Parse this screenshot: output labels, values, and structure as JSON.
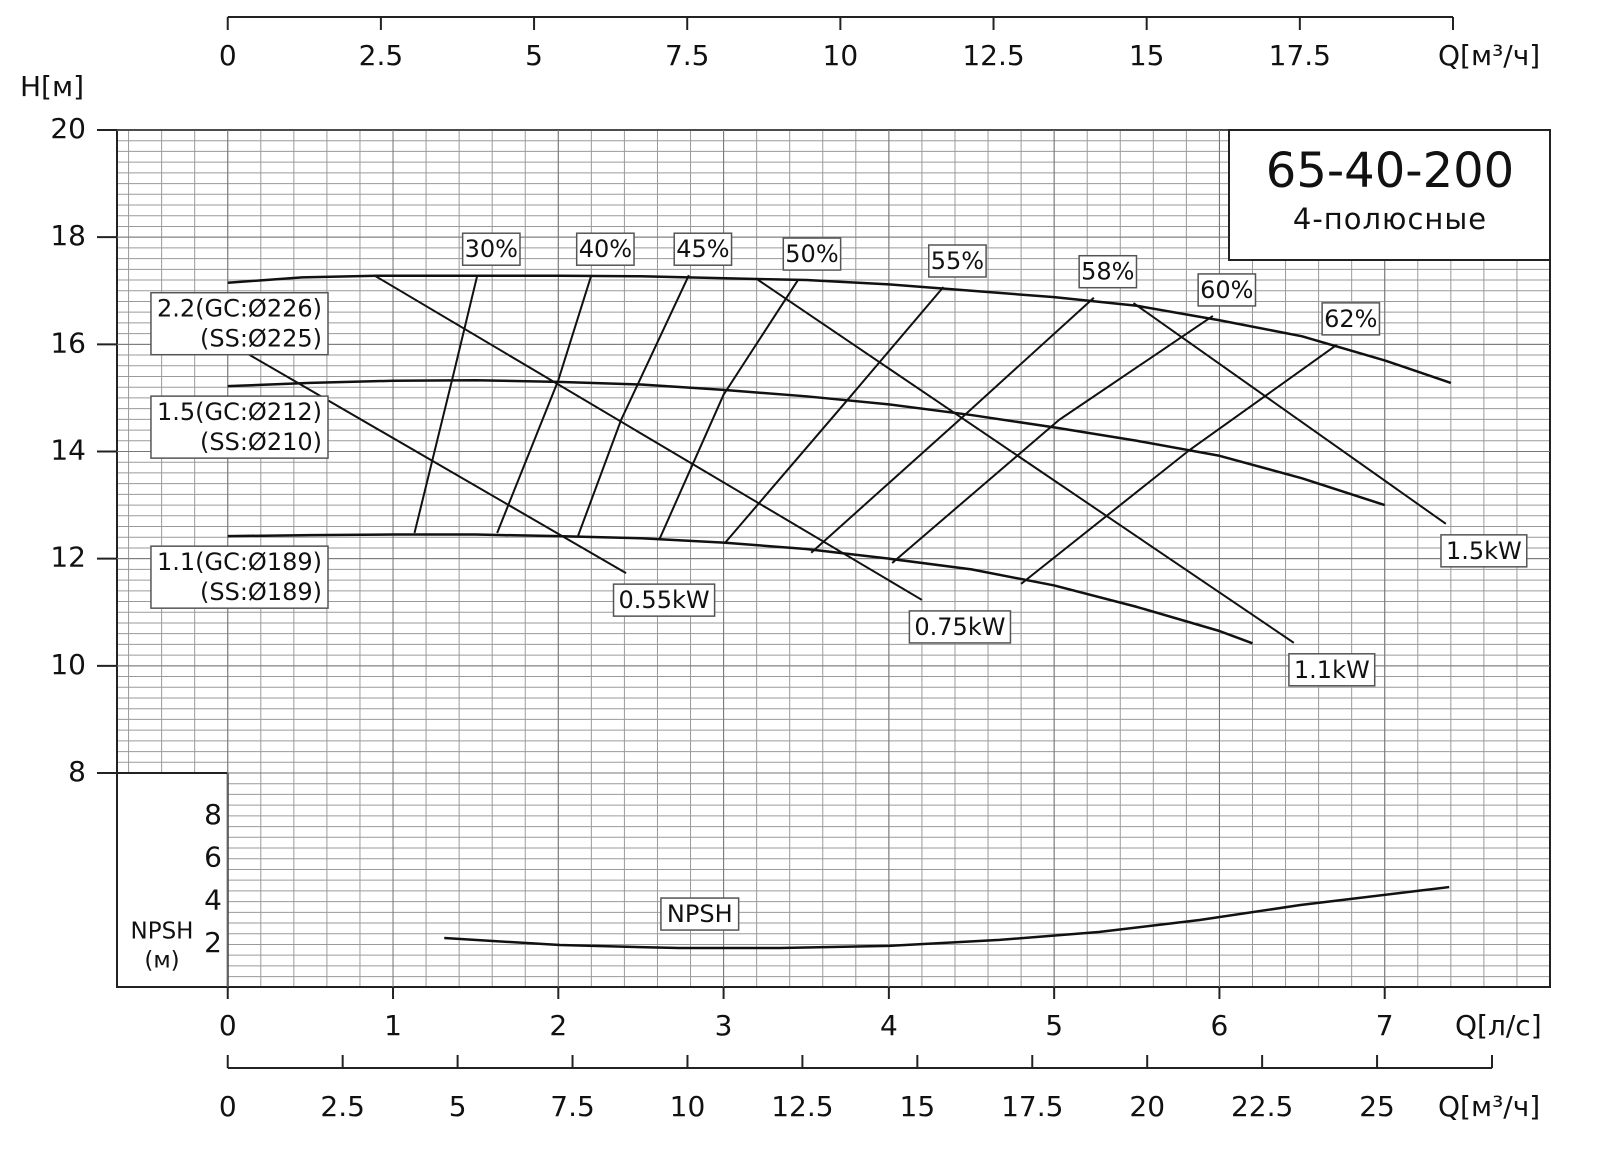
{
  "chart_data": {
    "type": "line",
    "title": "65-40-200",
    "subtitle": "4-полюсные",
    "y_label": "H[м]",
    "x_label": "Q[л/с]",
    "xlim": [
      -0.67,
      8
    ],
    "xticks": [
      0,
      1,
      2,
      3,
      4,
      5,
      6,
      7
    ],
    "ylim": [
      8,
      20
    ],
    "yticks": [
      8,
      10,
      12,
      14,
      16,
      18,
      20
    ],
    "grid": true,
    "color": "#111111",
    "top_axis": {
      "label": "Q[м³/ч]",
      "lim": [
        0,
        20
      ],
      "ticks": [
        0,
        2.5,
        5,
        7.5,
        10,
        12.5,
        15,
        17.5
      ]
    },
    "bottom_axis": {
      "label": "Q[м³/ч]",
      "lim": [
        0,
        27.5
      ],
      "ticks": [
        0,
        2.5,
        5,
        7.5,
        10,
        12.5,
        15,
        17.5,
        20,
        22.5,
        25
      ]
    },
    "npsh_axis": {
      "label": "NPSH",
      "unit": "(м)",
      "lim": [
        0,
        10
      ],
      "ticks": [
        2,
        4,
        6,
        8
      ]
    },
    "head_curves": [
      {
        "label_lines": [
          "2.2(GC:Ø226)",
          "(SS:Ø225)"
        ],
        "x": [
          0,
          0.45,
          0.9,
          1.5,
          2.0,
          2.5,
          3.2,
          3.5,
          4.0,
          4.5,
          5.0,
          5.5,
          6.0,
          6.5,
          7.0,
          7.4
        ],
        "values": [
          17.15,
          17.25,
          17.28,
          17.28,
          17.28,
          17.27,
          17.22,
          17.2,
          17.12,
          17.0,
          16.88,
          16.72,
          16.45,
          16.15,
          15.7,
          15.28
        ]
      },
      {
        "label_lines": [
          "1.5(GC:Ø212)",
          "(SS:Ø210)"
        ],
        "x": [
          0,
          0.5,
          1.0,
          1.5,
          2.0,
          2.5,
          3.0,
          3.5,
          4.0,
          4.5,
          5.0,
          5.5,
          6.0,
          6.5,
          7.0
        ],
        "values": [
          15.22,
          15.28,
          15.32,
          15.33,
          15.3,
          15.25,
          15.15,
          15.03,
          14.88,
          14.68,
          14.45,
          14.2,
          13.92,
          13.5,
          13.0
        ]
      },
      {
        "label_lines": [
          "1.1(GC:Ø189)",
          "(SS:Ø189)"
        ],
        "x": [
          0,
          0.5,
          1.0,
          1.5,
          2.0,
          2.5,
          3.0,
          3.5,
          4.0,
          4.5,
          5.0,
          5.5,
          6.0,
          6.2
        ],
        "values": [
          12.42,
          12.44,
          12.45,
          12.45,
          12.42,
          12.38,
          12.3,
          12.18,
          12.0,
          11.8,
          11.5,
          11.1,
          10.65,
          10.42
        ]
      }
    ],
    "power_lines": [
      {
        "name": "0.55kW",
        "x": [
          0.1,
          2.41
        ],
        "values": [
          15.86,
          11.73
        ]
      },
      {
        "name": "0.75kW",
        "x": [
          0.89,
          4.2
        ],
        "values": [
          17.28,
          11.23
        ]
      },
      {
        "name": "1.1kW",
        "x": [
          3.2,
          6.45
        ],
        "values": [
          17.22,
          10.43
        ]
      },
      {
        "name": "1.5kW",
        "x": [
          5.48,
          7.37
        ],
        "values": [
          16.77,
          12.65
        ]
      }
    ],
    "efficiency_curves": [
      {
        "name": "30%",
        "x": [
          1.13,
          1.36,
          1.51
        ],
        "values": [
          12.48,
          15.37,
          17.29
        ]
      },
      {
        "name": "40%",
        "x": [
          1.63,
          2.0,
          2.2
        ],
        "values": [
          12.48,
          15.33,
          17.29
        ]
      },
      {
        "name": "45%",
        "x": [
          2.12,
          2.38,
          2.79
        ],
        "values": [
          12.43,
          14.59,
          17.29
        ]
      },
      {
        "name": "50%",
        "x": [
          2.61,
          3.0,
          3.45
        ],
        "values": [
          12.35,
          15.06,
          17.2
        ]
      },
      {
        "name": "55%",
        "x": [
          3.01,
          3.76,
          4.33
        ],
        "values": [
          12.3,
          15.0,
          17.07
        ]
      },
      {
        "name": "58%",
        "x": [
          3.53,
          4.43,
          5.24
        ],
        "values": [
          12.11,
          14.6,
          16.87
        ]
      },
      {
        "name": "60%",
        "x": [
          4.02,
          5.03,
          5.96
        ],
        "values": [
          11.92,
          14.59,
          16.53
        ]
      },
      {
        "name": "62%",
        "x": [
          4.8,
          5.82,
          6.71
        ],
        "values": [
          11.53,
          14.03,
          15.99
        ]
      }
    ],
    "npsh_curve": {
      "name": "NPSH",
      "x": [
        1.31,
        2.01,
        2.73,
        3.34,
        4.0,
        4.67,
        5.27,
        5.88,
        6.49,
        7.39
      ],
      "values": [
        2.29,
        1.96,
        1.82,
        1.82,
        1.92,
        2.2,
        2.57,
        3.13,
        3.83,
        4.67
      ]
    }
  }
}
